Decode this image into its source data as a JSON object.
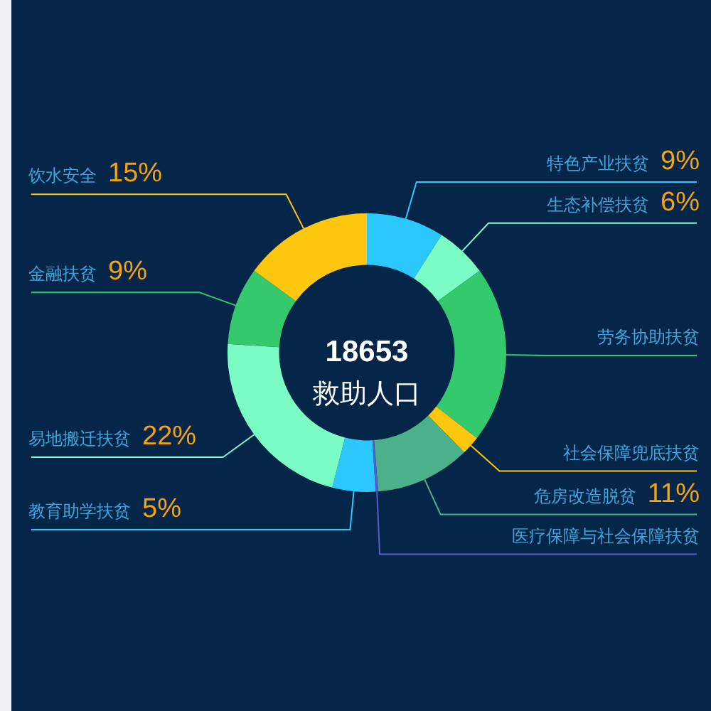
{
  "chart_data": {
    "type": "donut",
    "categories": [
      "特色产业扶贫",
      "生态补偿扶贫",
      "劳务协助扶贫",
      "社会保障兜底扶贫",
      "危房改造脱贫",
      "医疗保障与社会保障扶贫",
      "教育助学扶贫",
      "易地搬迁扶贫",
      "金融扶贫",
      "饮水安全"
    ],
    "values": [
      9,
      6,
      20.5,
      2.2,
      11,
      0.3,
      5,
      22,
      9,
      15
    ],
    "value_labels": [
      "9%",
      "6%",
      null,
      null,
      "11%",
      null,
      "5%",
      "22%",
      "9%",
      "15%"
    ],
    "colors": [
      "#2bc8fd",
      "#7afcc4",
      "#35c96e",
      "#fdc70e",
      "#4bb18a",
      "#5a5ad4",
      "#2bc8fd",
      "#7afcc4",
      "#35c96e",
      "#fdc70e"
    ],
    "annotations": [
      "18653",
      "救助人口"
    ]
  }
}
